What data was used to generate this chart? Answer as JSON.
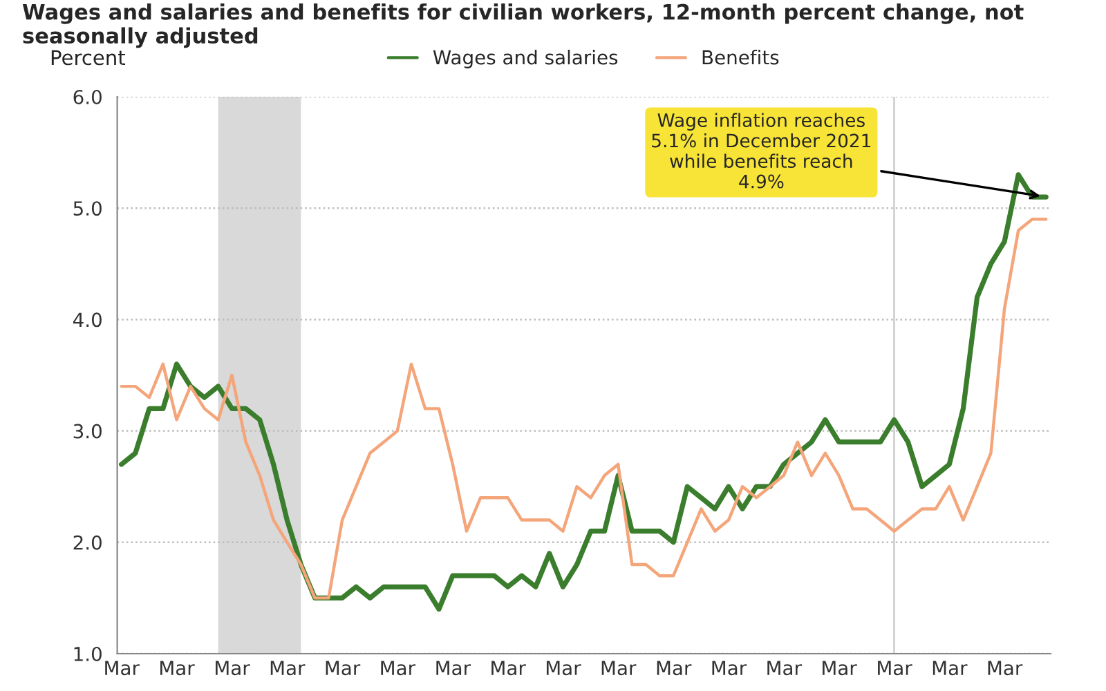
{
  "chart_data": {
    "type": "line",
    "title": "Wages and salaries and benefits for civilian workers, 12-month percent change, not seasonally adjusted",
    "ylabel": "Percent",
    "x": [
      "2006-03",
      "2006-06",
      "2006-09",
      "2006-12",
      "2007-03",
      "2007-06",
      "2007-09",
      "2007-12",
      "2008-03",
      "2008-06",
      "2008-09",
      "2008-12",
      "2009-03",
      "2009-06",
      "2009-09",
      "2009-12",
      "2010-03",
      "2010-06",
      "2010-09",
      "2010-12",
      "2011-03",
      "2011-06",
      "2011-09",
      "2011-12",
      "2012-03",
      "2012-06",
      "2012-09",
      "2012-12",
      "2013-03",
      "2013-06",
      "2013-09",
      "2013-12",
      "2014-03",
      "2014-06",
      "2014-09",
      "2014-12",
      "2015-03",
      "2015-06",
      "2015-09",
      "2015-12",
      "2016-03",
      "2016-06",
      "2016-09",
      "2016-12",
      "2017-03",
      "2017-06",
      "2017-09",
      "2017-12",
      "2018-03",
      "2018-06",
      "2018-09",
      "2018-12",
      "2019-03",
      "2019-06",
      "2019-09",
      "2019-12",
      "2020-03",
      "2020-06",
      "2020-09",
      "2020-12",
      "2021-03",
      "2021-06",
      "2021-09",
      "2021-12",
      "2022-03",
      "2022-06",
      "2022-09",
      "2022-12"
    ],
    "series": [
      {
        "name": "Wages and salaries",
        "color": "#3a7d2c",
        "values": [
          2.7,
          2.8,
          3.2,
          3.2,
          3.6,
          3.4,
          3.3,
          3.4,
          3.2,
          3.2,
          3.1,
          2.7,
          2.2,
          1.8,
          1.5,
          1.5,
          1.5,
          1.6,
          1.5,
          1.6,
          1.6,
          1.6,
          1.6,
          1.4,
          1.7,
          1.7,
          1.7,
          1.7,
          1.6,
          1.7,
          1.6,
          1.9,
          1.6,
          1.8,
          2.1,
          2.1,
          2.6,
          2.1,
          2.1,
          2.1,
          2.0,
          2.5,
          2.4,
          2.3,
          2.5,
          2.3,
          2.5,
          2.5,
          2.7,
          2.8,
          2.9,
          3.1,
          2.9,
          2.9,
          2.9,
          2.9,
          3.1,
          2.9,
          2.5,
          2.6,
          2.7,
          3.2,
          4.2,
          4.5,
          4.7,
          5.3,
          5.1,
          5.1
        ]
      },
      {
        "name": "Benefits",
        "color": "#f4a57a",
        "values": [
          3.4,
          3.4,
          3.3,
          3.6,
          3.1,
          3.4,
          3.2,
          3.1,
          3.5,
          2.9,
          2.6,
          2.2,
          2.0,
          1.8,
          1.5,
          1.5,
          2.2,
          2.5,
          2.8,
          2.9,
          3.0,
          3.6,
          3.2,
          3.2,
          2.7,
          2.1,
          2.4,
          2.4,
          2.4,
          2.2,
          2.2,
          2.2,
          2.1,
          2.5,
          2.4,
          2.6,
          2.7,
          1.8,
          1.8,
          1.7,
          1.7,
          2.0,
          2.3,
          2.1,
          2.2,
          2.5,
          2.4,
          2.5,
          2.6,
          2.9,
          2.6,
          2.8,
          2.6,
          2.3,
          2.3,
          2.2,
          2.1,
          2.2,
          2.3,
          2.3,
          2.5,
          2.2,
          2.5,
          2.8,
          4.1,
          4.8,
          4.9,
          4.9
        ]
      }
    ],
    "xlim": [
      "2006-02",
      "2023-01"
    ],
    "xticks": [
      {
        "value": "2006-03",
        "label": "Mar"
      },
      {
        "value": "2007-03",
        "label": "Mar"
      },
      {
        "value": "2008-03",
        "label": "Mar"
      },
      {
        "value": "2009-03",
        "label": "Mar"
      },
      {
        "value": "2010-03",
        "label": "Mar"
      },
      {
        "value": "2011-03",
        "label": "Mar"
      },
      {
        "value": "2012-03",
        "label": "Mar"
      },
      {
        "value": "2013-03",
        "label": "Mar"
      },
      {
        "value": "2014-03",
        "label": "Mar"
      },
      {
        "value": "2015-03",
        "label": "Mar"
      },
      {
        "value": "2016-03",
        "label": "Mar"
      },
      {
        "value": "2017-03",
        "label": "Mar"
      },
      {
        "value": "2018-03",
        "label": "Mar"
      },
      {
        "value": "2019-03",
        "label": "Mar"
      },
      {
        "value": "2020-03",
        "label": "Mar"
      },
      {
        "value": "2021-03",
        "label": "Mar"
      },
      {
        "value": "2022-03",
        "label": "Mar"
      }
    ],
    "ylim": [
      1.0,
      6.0
    ],
    "yticks": [
      {
        "value": 1,
        "label": "1.0"
      },
      {
        "value": 2,
        "label": "2.0"
      },
      {
        "value": 3,
        "label": "3.0"
      },
      {
        "value": 4,
        "label": "4.0"
      },
      {
        "value": 5,
        "label": "5.0"
      },
      {
        "value": 6,
        "label": "6.0"
      }
    ],
    "grid": "y",
    "legend": "top",
    "bands": [
      {
        "axis": "x",
        "from": "2007-12",
        "to": "2009-06",
        "color": "#d9d9d9"
      }
    ],
    "ref_lines": [
      {
        "axis": "x",
        "value": "2020-03",
        "color": "#d0d0d0"
      }
    ],
    "annotations": [
      {
        "text": "Wage inflation reaches\n5.1% in December 2021\nwhile benefits reach\n4.9%",
        "x": "2022-12",
        "y": 5.1
      }
    ]
  }
}
